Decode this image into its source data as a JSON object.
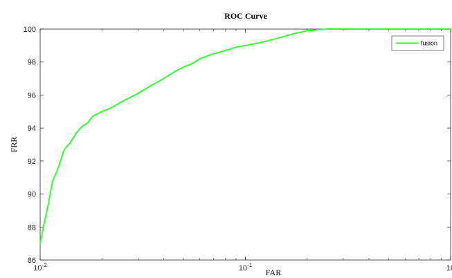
{
  "chart_data": {
    "type": "line",
    "title": "ROC Curve",
    "xlabel": "FAR",
    "ylabel": "FRR",
    "xscale": "log",
    "xlim": [
      0.01,
      1
    ],
    "ylim": [
      86,
      100
    ],
    "xticks": [
      {
        "value": 0.01,
        "base": "10",
        "exp": "-2"
      },
      {
        "value": 0.1,
        "base": "10",
        "exp": "-1"
      },
      {
        "value": 1,
        "base": "10",
        "exp": ""
      }
    ],
    "yticks": [
      "86",
      "88",
      "90",
      "92",
      "94",
      "96",
      "98",
      "100"
    ],
    "grid": false,
    "legend_position": "top-right",
    "series": [
      {
        "name": "fusion",
        "color": "#33ff33",
        "x": [
          0.01,
          0.0105,
          0.011,
          0.0115,
          0.012,
          0.0125,
          0.013,
          0.0135,
          0.014,
          0.015,
          0.016,
          0.017,
          0.018,
          0.02,
          0.022,
          0.025,
          0.03,
          0.035,
          0.04,
          0.045,
          0.05,
          0.055,
          0.06,
          0.07,
          0.08,
          0.09,
          0.1,
          0.12,
          0.14,
          0.17,
          0.2,
          0.25,
          0.3,
          0.5,
          0.8,
          1.0
        ],
        "y": [
          87.0,
          88.3,
          89.5,
          90.8,
          91.3,
          91.9,
          92.6,
          92.9,
          93.1,
          93.7,
          94.1,
          94.3,
          94.7,
          95.0,
          95.2,
          95.6,
          96.1,
          96.6,
          97.0,
          97.4,
          97.7,
          97.9,
          98.2,
          98.5,
          98.7,
          98.9,
          99.0,
          99.2,
          99.4,
          99.7,
          99.9,
          100.0,
          100.0,
          100.0,
          100.0,
          100.0
        ]
      }
    ]
  }
}
